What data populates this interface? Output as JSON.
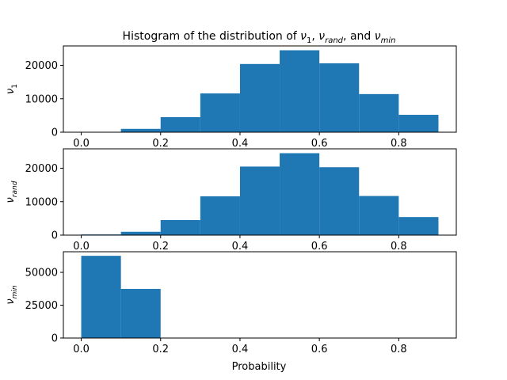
{
  "chart_data": {
    "type": "histogram",
    "title": "Histogram of the distribution of ν1, νrand, and νmin",
    "title_parts": {
      "prefix": "Histogram of the distribution of ",
      "v1_base": "ν",
      "v1_sub": "1",
      "sep1": ", ",
      "vrand_base": "ν",
      "vrand_sub": "rand",
      "sep2": ", and ",
      "vmin_base": "ν",
      "vmin_sub": "min"
    },
    "xlabel": "Probability",
    "bar_color": "#1f77b4",
    "xlim": [
      -0.045,
      0.945
    ],
    "xticks": [
      0.0,
      0.2,
      0.4,
      0.6,
      0.8
    ],
    "xtick_labels": [
      "0.0",
      "0.2",
      "0.4",
      "0.6",
      "0.8"
    ],
    "bin_edges": [
      0.0,
      0.1,
      0.2,
      0.3,
      0.4,
      0.5,
      0.6,
      0.7,
      0.8,
      0.9
    ],
    "panels": [
      {
        "ylabel_base": "ν",
        "ylabel_sub": "1",
        "ylim": [
          0,
          25800
        ],
        "yticks": [
          0,
          10000,
          20000
        ],
        "ytick_labels": [
          "0",
          "10000",
          "20000"
        ],
        "counts": [
          0,
          1000,
          4500,
          11600,
          20400,
          24500,
          20600,
          11400,
          5200
        ]
      },
      {
        "ylabel_base": "ν",
        "ylabel_sub": "rand",
        "ylim": [
          0,
          25800
        ],
        "yticks": [
          0,
          10000,
          20000
        ],
        "ytick_labels": [
          "0",
          "10000",
          "20000"
        ],
        "counts": [
          200,
          1000,
          4500,
          11600,
          20500,
          24500,
          20300,
          11700,
          5400
        ]
      },
      {
        "ylabel_base": "ν",
        "ylabel_sub": "min",
        "ylim": [
          0,
          65700
        ],
        "yticks": [
          0,
          25000,
          50000
        ],
        "ytick_labels": [
          "0",
          "25000",
          "50000"
        ],
        "counts": [
          62600,
          37400,
          0,
          0,
          0,
          0,
          0,
          0,
          0
        ]
      }
    ]
  }
}
